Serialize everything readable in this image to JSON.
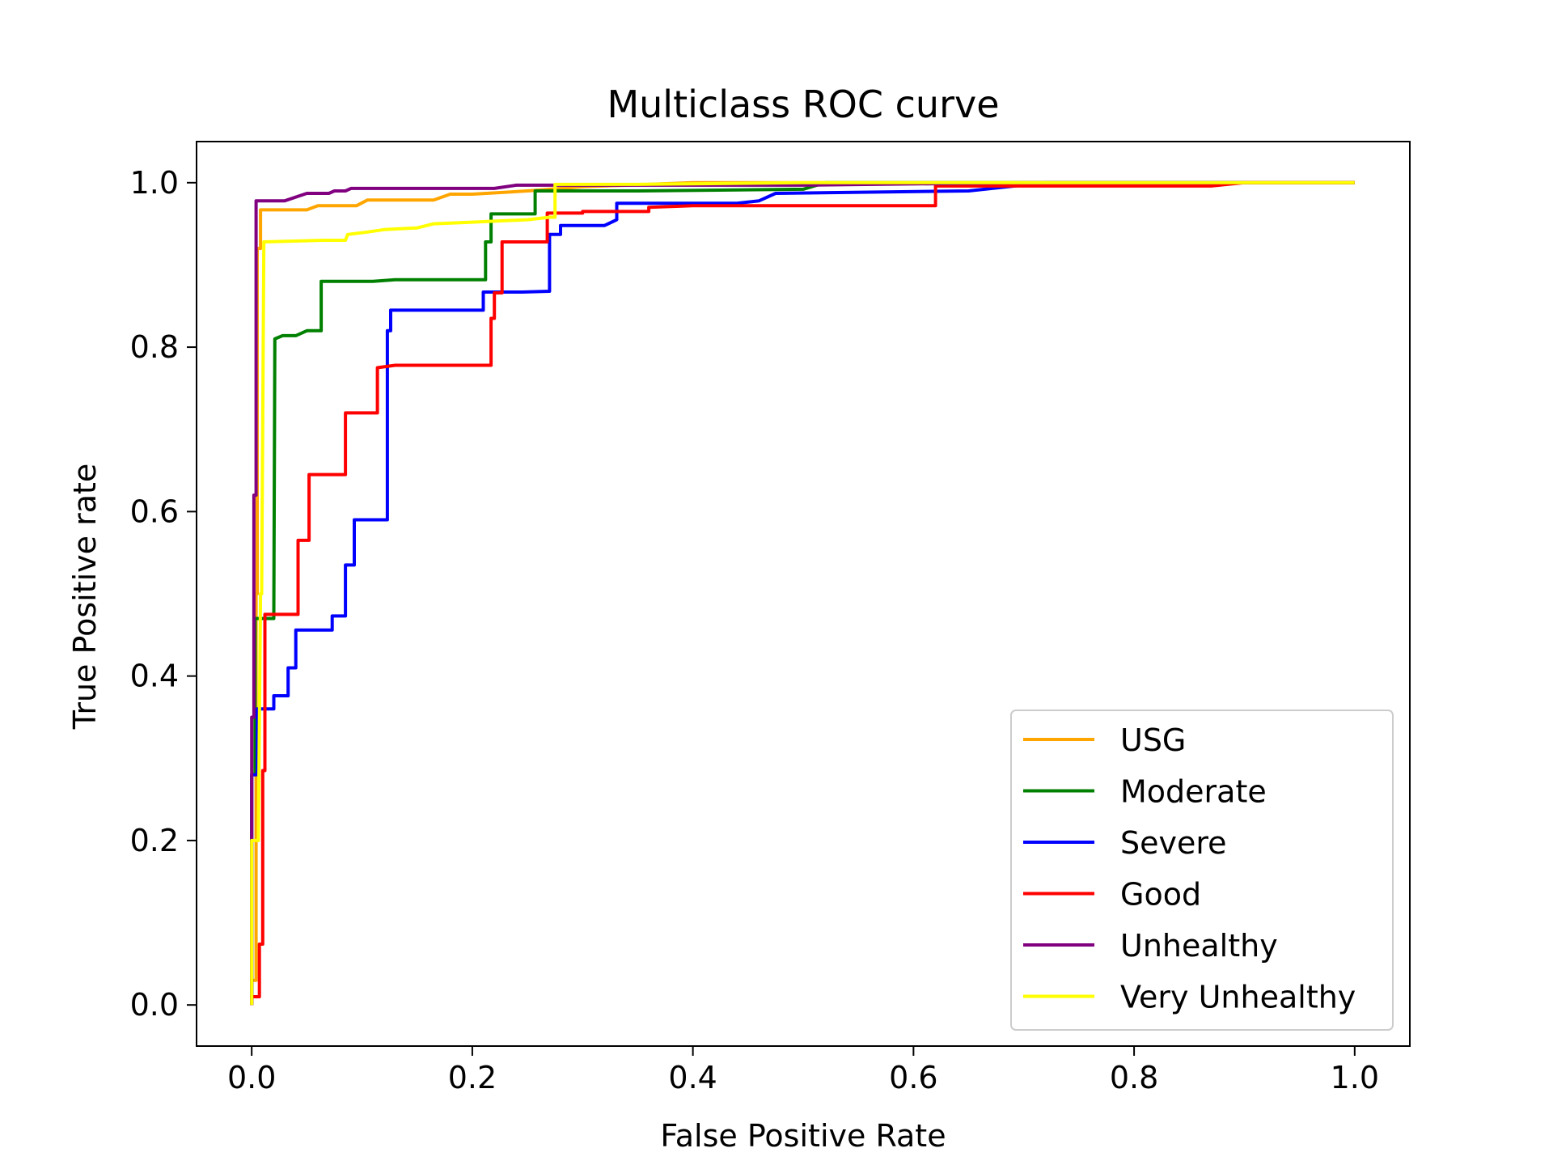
{
  "chart_data": {
    "type": "line",
    "title": "Multiclass ROC curve",
    "xlabel": "False Positive Rate",
    "ylabel": "True Positive rate",
    "xlim": [
      -0.05,
      1.05
    ],
    "ylim": [
      -0.05,
      1.05
    ],
    "xticks": [
      0.0,
      0.2,
      0.4,
      0.6,
      0.8,
      1.0
    ],
    "xtick_labels": [
      "0.0",
      "0.2",
      "0.4",
      "0.6",
      "0.8",
      "1.0"
    ],
    "yticks": [
      0.0,
      0.2,
      0.4,
      0.6,
      0.8,
      1.0
    ],
    "ytick_labels": [
      "0.0",
      "0.2",
      "0.4",
      "0.6",
      "0.8",
      "1.0"
    ],
    "grid": false,
    "legend_position": "lower-right",
    "series": [
      {
        "name": "USG",
        "color": "#FFA500",
        "points": [
          [
            0,
            0
          ],
          [
            0,
            0.03
          ],
          [
            0.004,
            0.03
          ],
          [
            0.004,
            0.5
          ],
          [
            0.005,
            0.5
          ],
          [
            0.005,
            0.92
          ],
          [
            0.008,
            0.92
          ],
          [
            0.008,
            0.967
          ],
          [
            0.05,
            0.967
          ],
          [
            0.06,
            0.972
          ],
          [
            0.095,
            0.972
          ],
          [
            0.105,
            0.979
          ],
          [
            0.165,
            0.979
          ],
          [
            0.18,
            0.986
          ],
          [
            0.2,
            0.986
          ],
          [
            0.25,
            0.99
          ],
          [
            0.3,
            0.995
          ],
          [
            0.4,
            1.0
          ],
          [
            1.0,
            1.0
          ]
        ]
      },
      {
        "name": "Moderate",
        "color": "#008000",
        "points": [
          [
            0,
            0
          ],
          [
            0,
            0.28
          ],
          [
            0.003,
            0.28
          ],
          [
            0.003,
            0.47
          ],
          [
            0.02,
            0.47
          ],
          [
            0.021,
            0.81
          ],
          [
            0.028,
            0.814
          ],
          [
            0.04,
            0.814
          ],
          [
            0.05,
            0.82
          ],
          [
            0.063,
            0.82
          ],
          [
            0.063,
            0.88
          ],
          [
            0.11,
            0.88
          ],
          [
            0.13,
            0.882
          ],
          [
            0.212,
            0.882
          ],
          [
            0.212,
            0.928
          ],
          [
            0.217,
            0.928
          ],
          [
            0.217,
            0.962
          ],
          [
            0.25,
            0.962
          ],
          [
            0.257,
            0.962
          ],
          [
            0.257,
            0.99
          ],
          [
            0.35,
            0.99
          ],
          [
            0.5,
            0.992
          ],
          [
            0.52,
            1.0
          ],
          [
            1.0,
            1.0
          ]
        ]
      },
      {
        "name": "Severe",
        "color": "#0000FF",
        "points": [
          [
            0,
            0
          ],
          [
            0,
            0.28
          ],
          [
            0.005,
            0.28
          ],
          [
            0.005,
            0.36
          ],
          [
            0.02,
            0.36
          ],
          [
            0.02,
            0.376
          ],
          [
            0.033,
            0.376
          ],
          [
            0.033,
            0.41
          ],
          [
            0.04,
            0.41
          ],
          [
            0.04,
            0.456
          ],
          [
            0.073,
            0.456
          ],
          [
            0.073,
            0.473
          ],
          [
            0.085,
            0.473
          ],
          [
            0.085,
            0.535
          ],
          [
            0.093,
            0.535
          ],
          [
            0.093,
            0.59
          ],
          [
            0.123,
            0.59
          ],
          [
            0.123,
            0.82
          ],
          [
            0.126,
            0.82
          ],
          [
            0.126,
            0.845
          ],
          [
            0.21,
            0.845
          ],
          [
            0.21,
            0.867
          ],
          [
            0.245,
            0.867
          ],
          [
            0.27,
            0.868
          ],
          [
            0.27,
            0.937
          ],
          [
            0.28,
            0.937
          ],
          [
            0.28,
            0.948
          ],
          [
            0.32,
            0.948
          ],
          [
            0.331,
            0.955
          ],
          [
            0.331,
            0.975
          ],
          [
            0.44,
            0.975
          ],
          [
            0.46,
            0.978
          ],
          [
            0.475,
            0.987
          ],
          [
            0.65,
            0.99
          ],
          [
            0.72,
            1.0
          ],
          [
            1.0,
            1.0
          ]
        ]
      },
      {
        "name": "Good",
        "color": "#FF0000",
        "points": [
          [
            0,
            0
          ],
          [
            0,
            0.01
          ],
          [
            0.007,
            0.01
          ],
          [
            0.007,
            0.074
          ],
          [
            0.01,
            0.074
          ],
          [
            0.01,
            0.285
          ],
          [
            0.012,
            0.285
          ],
          [
            0.012,
            0.475
          ],
          [
            0.042,
            0.475
          ],
          [
            0.042,
            0.565
          ],
          [
            0.052,
            0.565
          ],
          [
            0.052,
            0.645
          ],
          [
            0.085,
            0.645
          ],
          [
            0.085,
            0.72
          ],
          [
            0.114,
            0.72
          ],
          [
            0.114,
            0.775
          ],
          [
            0.13,
            0.778
          ],
          [
            0.217,
            0.778
          ],
          [
            0.217,
            0.835
          ],
          [
            0.22,
            0.835
          ],
          [
            0.22,
            0.866
          ],
          [
            0.227,
            0.866
          ],
          [
            0.227,
            0.928
          ],
          [
            0.268,
            0.928
          ],
          [
            0.268,
            0.963
          ],
          [
            0.3,
            0.963
          ],
          [
            0.3,
            0.965
          ],
          [
            0.36,
            0.965
          ],
          [
            0.36,
            0.97
          ],
          [
            0.4,
            0.972
          ],
          [
            0.62,
            0.972
          ],
          [
            0.62,
            0.996
          ],
          [
            0.87,
            0.996
          ],
          [
            0.9,
            1.0
          ],
          [
            1.0,
            1.0
          ]
        ]
      },
      {
        "name": "Unhealthy",
        "color": "#800080",
        "points": [
          [
            0,
            0
          ],
          [
            0,
            0.35
          ],
          [
            0.002,
            0.35
          ],
          [
            0.002,
            0.62
          ],
          [
            0.004,
            0.62
          ],
          [
            0.004,
            0.978
          ],
          [
            0.03,
            0.978
          ],
          [
            0.05,
            0.987
          ],
          [
            0.07,
            0.987
          ],
          [
            0.075,
            0.99
          ],
          [
            0.085,
            0.99
          ],
          [
            0.09,
            0.993
          ],
          [
            0.22,
            0.993
          ],
          [
            0.24,
            0.997
          ],
          [
            0.5,
            0.997
          ],
          [
            0.7,
            1.0
          ],
          [
            1.0,
            1.0
          ]
        ]
      },
      {
        "name": "Very Unhealthy",
        "color": "#FFFF00",
        "points": [
          [
            0,
            0
          ],
          [
            0,
            0.2
          ],
          [
            0.006,
            0.2
          ],
          [
            0.008,
            0.5
          ],
          [
            0.009,
            0.5
          ],
          [
            0.011,
            0.928
          ],
          [
            0.065,
            0.93
          ],
          [
            0.085,
            0.93
          ],
          [
            0.087,
            0.937
          ],
          [
            0.105,
            0.94
          ],
          [
            0.12,
            0.943
          ],
          [
            0.15,
            0.945
          ],
          [
            0.165,
            0.95
          ],
          [
            0.2,
            0.952
          ],
          [
            0.25,
            0.955
          ],
          [
            0.27,
            0.958
          ],
          [
            0.275,
            0.958
          ],
          [
            0.275,
            0.998
          ],
          [
            0.35,
            0.998
          ],
          [
            0.5,
            1.0
          ],
          [
            1.0,
            1.0
          ]
        ]
      }
    ]
  }
}
